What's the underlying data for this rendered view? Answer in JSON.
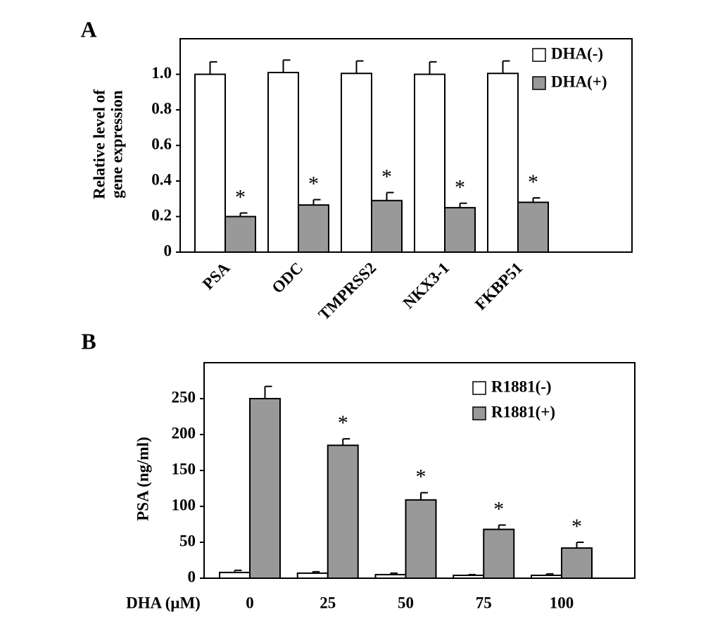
{
  "chart_data": [
    {
      "type": "bar",
      "panel_label": "A",
      "ylabel": [
        "Relative level of",
        "gene expression"
      ],
      "categories": [
        "PSA",
        "ODC",
        "TMPRSS2",
        "NKX3-1",
        "FKBP51"
      ],
      "series": [
        {
          "name": "DHA(-)",
          "color": "#ffffff",
          "values": [
            1.0,
            1.01,
            1.005,
            1.0,
            1.005
          ],
          "errors": [
            0.07,
            0.07,
            0.07,
            0.07,
            0.07
          ]
        },
        {
          "name": "DHA(+)",
          "color": "#999999",
          "values": [
            0.2,
            0.265,
            0.29,
            0.25,
            0.28
          ],
          "errors": [
            0.02,
            0.03,
            0.045,
            0.025,
            0.025
          ],
          "annotations": [
            "*",
            "*",
            "*",
            "*",
            "*"
          ]
        }
      ],
      "ylim": [
        0,
        1.2
      ],
      "yticks": [
        0,
        0.2,
        0.4,
        0.6,
        0.8,
        {
          "value": 1,
          "label": "1.0"
        }
      ],
      "legend": "upper right",
      "grid": false
    },
    {
      "type": "bar",
      "panel_label": "B",
      "ylabel": [
        "PSA (ng/ml)"
      ],
      "xlabel": "DHA (μM)",
      "categories": [
        "0",
        "25",
        "50",
        "75",
        "100"
      ],
      "series": [
        {
          "name": "R1881(-)",
          "color": "#ffffff",
          "values": [
            8,
            7,
            5,
            4,
            4
          ],
          "errors": [
            3,
            2,
            2,
            1,
            2
          ]
        },
        {
          "name": "R1881(+)",
          "color": "#999999",
          "values": [
            250,
            185,
            109,
            68,
            42
          ],
          "errors": [
            17,
            9,
            10,
            6,
            8
          ],
          "annotations": [
            null,
            "*",
            "*",
            "*",
            "*"
          ]
        }
      ],
      "ylim": [
        0,
        300
      ],
      "yticks": [
        0,
        50,
        100,
        150,
        200,
        250
      ],
      "legend": "upper right",
      "grid": false
    }
  ]
}
